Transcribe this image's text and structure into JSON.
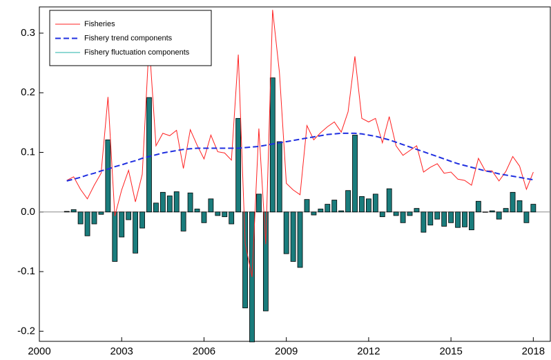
{
  "chart_data": {
    "type": "line",
    "x": [
      2001,
      2001.25,
      2001.5,
      2001.75,
      2002,
      2002.25,
      2002.5,
      2002.75,
      2003,
      2003.25,
      2003.5,
      2003.75,
      2004,
      2004.25,
      2004.5,
      2004.75,
      2005,
      2005.25,
      2005.5,
      2005.75,
      2006,
      2006.25,
      2006.5,
      2006.75,
      2007,
      2007.25,
      2007.5,
      2007.75,
      2008,
      2008.25,
      2008.5,
      2008.75,
      2009,
      2009.25,
      2009.5,
      2009.75,
      2010,
      2010.25,
      2010.5,
      2010.75,
      2011,
      2011.25,
      2011.5,
      2011.75,
      2012,
      2012.25,
      2012.5,
      2012.75,
      2013,
      2013.25,
      2013.5,
      2013.75,
      2014,
      2014.25,
      2014.5,
      2014.75,
      2015,
      2015.25,
      2015.5,
      2015.75,
      2016,
      2016.25,
      2016.5,
      2016.75,
      2017,
      2017.25,
      2017.5,
      2017.75,
      2018
    ],
    "series": [
      {
        "name": "Fisheries",
        "color": "#ff2020",
        "type": "line",
        "dashed": false,
        "values": [
          0.053,
          0.059,
          0.038,
          0.022,
          0.045,
          0.065,
          0.193,
          -0.007,
          0.037,
          0.07,
          0.017,
          0.063,
          0.285,
          0.111,
          0.132,
          0.128,
          0.137,
          0.073,
          0.138,
          0.112,
          0.089,
          0.129,
          0.101,
          0.099,
          0.087,
          0.264,
          -0.053,
          -0.109,
          0.14,
          -0.054,
          0.339,
          0.234,
          0.048,
          0.037,
          0.029,
          0.145,
          0.121,
          0.133,
          0.143,
          0.151,
          0.134,
          0.168,
          0.261,
          0.157,
          0.151,
          0.157,
          0.116,
          0.16,
          0.111,
          0.095,
          0.103,
          0.111,
          0.067,
          0.075,
          0.081,
          0.065,
          0.067,
          0.055,
          0.053,
          0.045,
          0.09,
          0.069,
          0.069,
          0.052,
          0.068,
          0.093,
          0.077,
          0.038,
          0.067
        ]
      },
      {
        "name": "Fishery trend components",
        "color": "#1f2fe0",
        "type": "line",
        "dashed": true,
        "values": [
          0.052,
          0.055,
          0.058,
          0.062,
          0.065,
          0.069,
          0.072,
          0.076,
          0.079,
          0.083,
          0.086,
          0.09,
          0.093,
          0.096,
          0.099,
          0.101,
          0.103,
          0.105,
          0.106,
          0.107,
          0.107,
          0.107,
          0.107,
          0.107,
          0.107,
          0.107,
          0.108,
          0.109,
          0.11,
          0.112,
          0.114,
          0.116,
          0.118,
          0.12,
          0.122,
          0.124,
          0.126,
          0.128,
          0.13,
          0.131,
          0.132,
          0.132,
          0.132,
          0.131,
          0.129,
          0.127,
          0.124,
          0.121,
          0.117,
          0.113,
          0.109,
          0.105,
          0.101,
          0.097,
          0.093,
          0.089,
          0.085,
          0.081,
          0.078,
          0.075,
          0.072,
          0.069,
          0.067,
          0.064,
          0.062,
          0.06,
          0.058,
          0.056,
          0.054
        ]
      },
      {
        "name": "Fishery fluctuation components",
        "color": "#1a7c7c",
        "legend_color": "#20b2aa",
        "type": "bar",
        "values": [
          0.001,
          0.004,
          -0.02,
          -0.04,
          -0.02,
          -0.004,
          0.121,
          -0.083,
          -0.042,
          -0.013,
          -0.069,
          -0.027,
          0.192,
          0.015,
          0.033,
          0.027,
          0.034,
          -0.032,
          0.032,
          0.005,
          -0.018,
          0.022,
          -0.006,
          -0.008,
          -0.02,
          0.157,
          -0.161,
          -0.218,
          0.03,
          -0.166,
          0.225,
          0.118,
          -0.07,
          -0.083,
          -0.093,
          0.021,
          -0.005,
          0.005,
          0.013,
          0.02,
          0.002,
          0.036,
          0.129,
          0.026,
          0.022,
          0.03,
          -0.008,
          0.039,
          -0.006,
          -0.018,
          -0.006,
          0.006,
          -0.034,
          -0.022,
          -0.012,
          -0.024,
          -0.018,
          -0.026,
          -0.025,
          -0.03,
          0.018,
          0.0,
          0.002,
          -0.012,
          0.006,
          0.033,
          0.019,
          -0.018,
          0.013
        ]
      }
    ],
    "xlim": [
      2000,
      2018.62
    ],
    "xticks": [
      2000,
      2003,
      2006,
      2009,
      2012,
      2015,
      2018
    ],
    "ylim": [
      -0.217,
      0.344
    ],
    "yticks": [
      -0.2,
      -0.1,
      {
        "value": 0,
        "label": "0.0"
      },
      0.1,
      0.2,
      0.3
    ],
    "legend": "upper left",
    "grid": false
  }
}
